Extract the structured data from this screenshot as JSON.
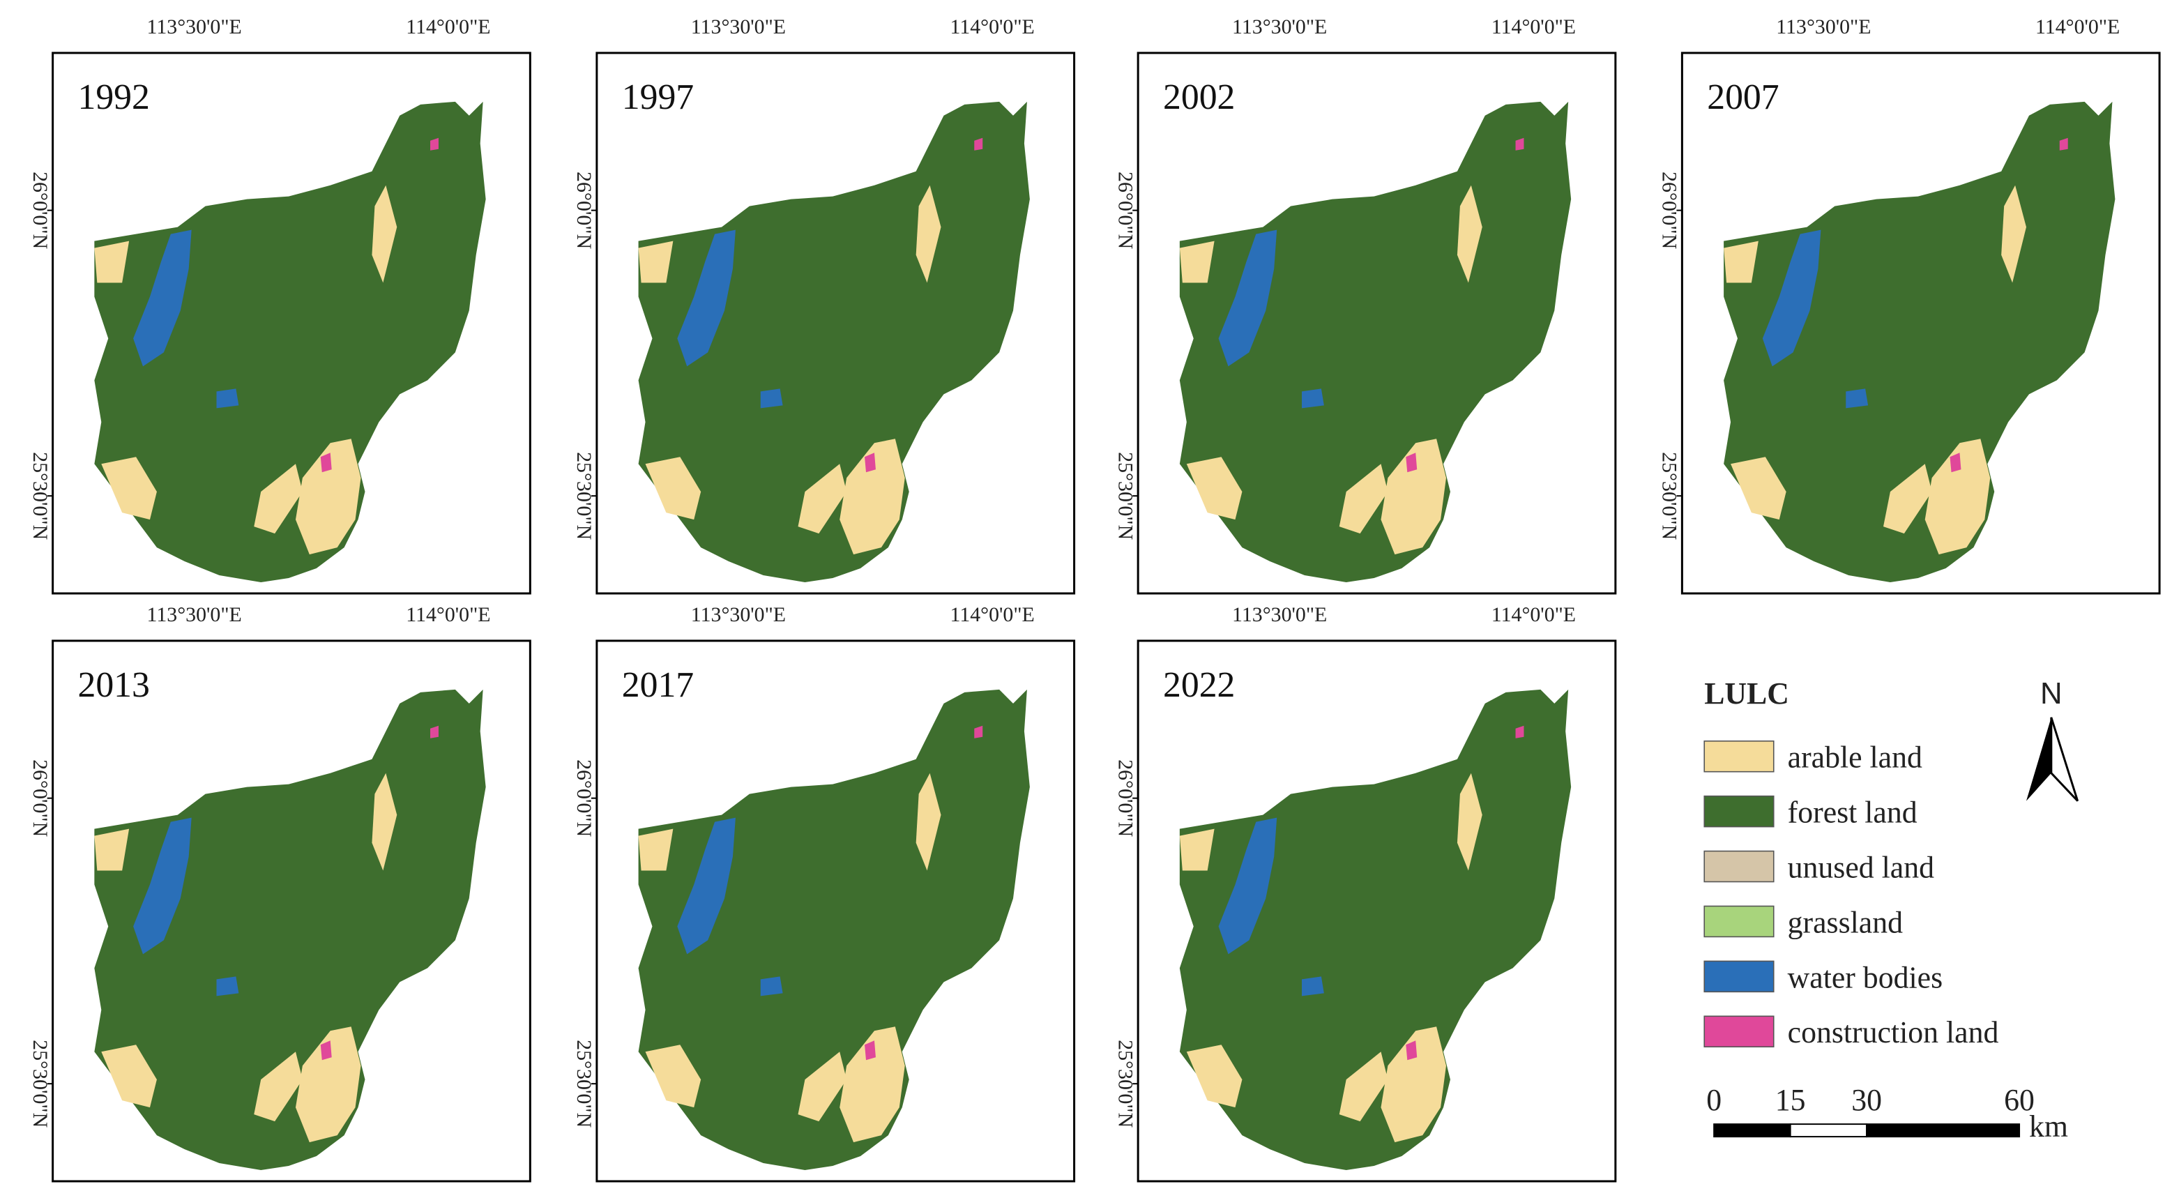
{
  "panels": [
    {
      "year": "1992"
    },
    {
      "year": "1997"
    },
    {
      "year": "2002"
    },
    {
      "year": "2007"
    },
    {
      "year": "2013"
    },
    {
      "year": "2017"
    },
    {
      "year": "2022"
    }
  ],
  "axes": {
    "lon": [
      "113°30'0\"E",
      "114°0'0\"E"
    ],
    "lat": [
      "26°0'0\"N",
      "25°30'0\"N"
    ]
  },
  "legend": {
    "title": "LULC",
    "items": [
      {
        "label": "arable land",
        "color": "#f5dc9a"
      },
      {
        "label": "forest land",
        "color": "#3e6e2e"
      },
      {
        "label": "unused land",
        "color": "#d5c5a8"
      },
      {
        "label": "grassland",
        "color": "#a8d47c"
      },
      {
        "label": "water bodies",
        "color": "#2a6fb8"
      },
      {
        "label": "construction land",
        "color": "#e0489a"
      }
    ]
  },
  "north": "N",
  "scale_bar": {
    "ticks": [
      0,
      15,
      30,
      60
    ],
    "unit": "km"
  }
}
